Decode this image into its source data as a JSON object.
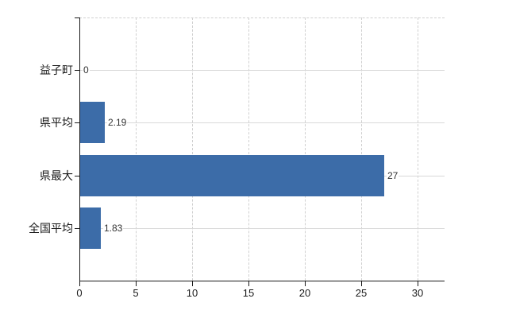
{
  "chart_data": {
    "type": "bar",
    "orientation": "horizontal",
    "title": "",
    "xlabel": "",
    "ylabel": "",
    "categories": [
      "益子町",
      "県平均",
      "県最大",
      "全国平均"
    ],
    "values": [
      0,
      2.19,
      27,
      1.83
    ],
    "value_labels": [
      "0",
      "2.19",
      "27",
      "1.83"
    ],
    "x_ticks": [
      0,
      5,
      10,
      15,
      20,
      25,
      30
    ],
    "x_tick_labels": [
      "0",
      "5",
      "10",
      "15",
      "20",
      "25",
      "30"
    ],
    "xlim": [
      0,
      32.4
    ],
    "grid": "on",
    "legend": "none",
    "colors": {
      "bar": "#3c6ca8",
      "axis": "#1a1a1a",
      "h_gridline": "#d9d9d9",
      "v_gridline": "#d0d0d0",
      "value_label": "#333333",
      "tick_label": "#1a1a1a",
      "background": "#ffffff"
    }
  }
}
